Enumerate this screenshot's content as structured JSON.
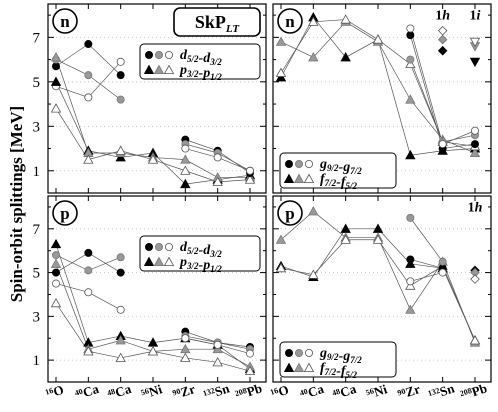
{
  "figure": {
    "ylabel": "Spin-orbit splittings [MeV]",
    "force_label_main": "SkP",
    "force_label_sub": "LT",
    "nuclei": [
      {
        "mass": "16",
        "sym": "O"
      },
      {
        "mass": "40",
        "sym": "Ca"
      },
      {
        "mass": "48",
        "sym": "Ca"
      },
      {
        "mass": "56",
        "sym": "Ni"
      },
      {
        "mass": "90",
        "sym": "Zr"
      },
      {
        "mass": "132",
        "sym": "Sn"
      },
      {
        "mass": "208",
        "sym": "Pb"
      }
    ],
    "yticks": [
      1,
      3,
      5,
      7
    ],
    "colors": {
      "filled": "#000000",
      "gray": "#999999",
      "open": "#ffffff",
      "line": "#555555"
    }
  },
  "chart_data": [
    {
      "type": "scatter",
      "panel": "top-left",
      "label": "n",
      "ylim": [
        0,
        8.5
      ],
      "legend_placement": "top-right",
      "legend": [
        {
          "main": "d",
          "sub1": "5/2",
          "sep": "-",
          "main2": "d",
          "sub2": "3/2",
          "marker": "circle"
        },
        {
          "main": "p",
          "sub1": "3/2",
          "sep": "-",
          "main2": "p",
          "sub2": "1/2",
          "marker": "triangle"
        }
      ],
      "series": [
        {
          "marker": "circle",
          "fill": "filled",
          "x": [
            0,
            1,
            2
          ],
          "values": [
            5.7,
            6.7,
            5.3
          ]
        },
        {
          "marker": "circle",
          "fill": "gray",
          "x": [
            0,
            1,
            2
          ],
          "values": [
            6.0,
            5.3,
            4.2
          ]
        },
        {
          "marker": "circle",
          "fill": "open",
          "x": [
            0,
            1,
            2
          ],
          "values": [
            4.8,
            4.3,
            5.9
          ]
        },
        {
          "marker": "triangle",
          "fill": "filled",
          "x": [
            0,
            1,
            2,
            3,
            4,
            5,
            6
          ],
          "values": [
            5.0,
            1.9,
            1.6,
            1.8,
            0.4,
            0.6,
            0.8
          ]
        },
        {
          "marker": "triangle",
          "fill": "gray",
          "x": [
            0,
            1,
            2,
            3,
            4,
            5,
            6
          ],
          "values": [
            6.1,
            1.8,
            1.8,
            1.6,
            1.5,
            0.7,
            0.7
          ]
        },
        {
          "marker": "triangle",
          "fill": "open",
          "x": [
            0,
            1,
            2,
            3,
            4,
            5,
            6
          ],
          "values": [
            3.8,
            1.5,
            1.9,
            1.5,
            1.0,
            0.5,
            0.6
          ]
        },
        {
          "marker": "circle",
          "fill": "filled",
          "x": [
            4,
            5,
            6
          ],
          "values": [
            2.4,
            1.9,
            0.9
          ]
        },
        {
          "marker": "circle",
          "fill": "gray",
          "x": [
            4,
            5,
            6
          ],
          "values": [
            2.2,
            1.8,
            1.0
          ]
        },
        {
          "marker": "circle",
          "fill": "open",
          "x": [
            4,
            5,
            6
          ],
          "values": [
            2.0,
            1.6,
            1.0
          ]
        }
      ]
    },
    {
      "type": "scatter",
      "panel": "top-right",
      "label": "n",
      "ylim": [
        0,
        8.5
      ],
      "legend_placement": "bottom-left",
      "legend": [
        {
          "main": "g",
          "sub1": "9/2",
          "sep": "-",
          "main2": "g",
          "sub2": "7/2",
          "marker": "circle"
        },
        {
          "main": "f",
          "sub1": "7/2",
          "sep": "-",
          "main2": "f",
          "sub2": "5/2",
          "marker": "triangle"
        }
      ],
      "annotations": [
        {
          "text": "1h",
          "x": 5
        },
        {
          "text": "1i",
          "x": 6
        }
      ],
      "series": [
        {
          "marker": "triangle",
          "fill": "filled",
          "x": [
            0,
            1,
            2,
            3,
            4,
            5,
            6
          ],
          "values": [
            5.2,
            7.9,
            6.1,
            6.9,
            1.7,
            1.9,
            2.0
          ]
        },
        {
          "marker": "triangle",
          "fill": "gray",
          "x": [
            0,
            1,
            2,
            3,
            4,
            5,
            6
          ],
          "values": [
            6.8,
            6.1,
            7.7,
            6.8,
            4.2,
            2.4,
            1.8
          ]
        },
        {
          "marker": "triangle",
          "fill": "open",
          "x": [
            0,
            1,
            2,
            3,
            4,
            5,
            6
          ],
          "values": [
            5.4,
            7.7,
            7.8,
            6.9,
            5.8,
            2.3,
            2.1
          ]
        },
        {
          "marker": "circle",
          "fill": "filled",
          "x": [
            4,
            5,
            6
          ],
          "values": [
            7.1,
            2.0,
            2.2
          ]
        },
        {
          "marker": "circle",
          "fill": "gray",
          "x": [
            4,
            5,
            6
          ],
          "values": [
            6.0,
            2.3,
            2.6
          ]
        },
        {
          "marker": "circle",
          "fill": "open",
          "x": [
            4,
            5,
            6
          ],
          "values": [
            7.4,
            2.2,
            2.8
          ]
        },
        {
          "marker": "diamond",
          "fill": "filled",
          "x": [
            5
          ],
          "values": [
            6.4
          ]
        },
        {
          "marker": "diamond",
          "fill": "gray",
          "x": [
            5
          ],
          "values": [
            6.9
          ]
        },
        {
          "marker": "diamond",
          "fill": "open",
          "x": [
            5
          ],
          "values": [
            7.3
          ]
        },
        {
          "marker": "triangle-down",
          "fill": "filled",
          "x": [
            6
          ],
          "values": [
            5.9
          ]
        },
        {
          "marker": "triangle-down",
          "fill": "gray",
          "x": [
            6
          ],
          "values": [
            6.6
          ]
        },
        {
          "marker": "triangle-down",
          "fill": "open",
          "x": [
            6
          ],
          "values": [
            6.8
          ]
        }
      ]
    },
    {
      "type": "scatter",
      "panel": "bottom-left",
      "label": "p",
      "ylim": [
        0,
        8.5
      ],
      "legend_placement": "top-right",
      "legend": [
        {
          "main": "d",
          "sub1": "5/2",
          "sep": "-",
          "main2": "d",
          "sub2": "3/2",
          "marker": "circle"
        },
        {
          "main": "p",
          "sub1": "3/2",
          "sep": "-",
          "main2": "p",
          "sub2": "1/2",
          "marker": "triangle"
        }
      ],
      "series": [
        {
          "marker": "circle",
          "fill": "filled",
          "x": [
            0,
            1,
            2
          ],
          "values": [
            5.0,
            5.9,
            5.0
          ]
        },
        {
          "marker": "circle",
          "fill": "gray",
          "x": [
            0,
            1,
            2
          ],
          "values": [
            5.8,
            5.1,
            5.7
          ]
        },
        {
          "marker": "circle",
          "fill": "open",
          "x": [
            0,
            1,
            2
          ],
          "values": [
            4.5,
            4.1,
            3.3
          ]
        },
        {
          "marker": "triangle",
          "fill": "filled",
          "x": [
            0,
            1,
            2,
            3,
            4,
            5,
            6
          ],
          "values": [
            6.3,
            1.8,
            2.1,
            1.8,
            2.0,
            1.7,
            0.6
          ]
        },
        {
          "marker": "triangle",
          "fill": "gray",
          "x": [
            0,
            1,
            2,
            3,
            4,
            5,
            6
          ],
          "values": [
            5.4,
            1.5,
            1.9,
            1.4,
            1.5,
            1.5,
            0.7
          ]
        },
        {
          "marker": "triangle",
          "fill": "open",
          "x": [
            0,
            1,
            2,
            3,
            4,
            5,
            6
          ],
          "values": [
            3.6,
            1.4,
            1.1,
            1.4,
            1.1,
            0.9,
            0.5
          ]
        },
        {
          "marker": "circle",
          "fill": "filled",
          "x": [
            4,
            5,
            6
          ],
          "values": [
            2.3,
            1.8,
            1.6
          ]
        },
        {
          "marker": "circle",
          "fill": "gray",
          "x": [
            4,
            5,
            6
          ],
          "values": [
            2.1,
            1.8,
            1.5
          ]
        },
        {
          "marker": "circle",
          "fill": "open",
          "x": [
            4,
            5,
            6
          ],
          "values": [
            2.0,
            1.7,
            1.3
          ]
        }
      ]
    },
    {
      "type": "scatter",
      "panel": "bottom-right",
      "label": "p",
      "ylim": [
        0,
        8.5
      ],
      "legend_placement": "bottom-left",
      "legend": [
        {
          "main": "g",
          "sub1": "9/2",
          "sep": "-",
          "main2": "g",
          "sub2": "7/2",
          "marker": "circle"
        },
        {
          "main": "f",
          "sub1": "7/2",
          "sep": "-",
          "main2": "f",
          "sub2": "5/2",
          "marker": "triangle"
        }
      ],
      "annotations": [
        {
          "text": "1h",
          "x": 6
        }
      ],
      "series": [
        {
          "marker": "triangle",
          "fill": "filled",
          "x": [
            0,
            1,
            2,
            3,
            4,
            5,
            6
          ],
          "values": [
            5.3,
            4.8,
            7.0,
            7.0,
            5.4,
            5.2,
            1.9
          ]
        },
        {
          "marker": "triangle",
          "fill": "gray",
          "x": [
            0,
            1,
            2,
            3,
            4,
            5,
            6
          ],
          "values": [
            6.5,
            7.8,
            6.6,
            6.6,
            3.3,
            5.5,
            1.8
          ]
        },
        {
          "marker": "triangle",
          "fill": "open",
          "x": [
            0,
            1,
            2,
            3,
            4,
            5,
            6
          ],
          "values": [
            5.2,
            4.9,
            6.5,
            6.5,
            4.4,
            5.3,
            1.9
          ]
        },
        {
          "marker": "circle",
          "fill": "filled",
          "x": [
            4,
            5
          ],
          "values": [
            5.6,
            5.2
          ]
        },
        {
          "marker": "circle",
          "fill": "gray",
          "x": [
            4,
            5
          ],
          "values": [
            7.5,
            5.5
          ]
        },
        {
          "marker": "circle",
          "fill": "open",
          "x": [
            4,
            5
          ],
          "values": [
            4.6,
            5.0
          ]
        },
        {
          "marker": "diamond",
          "fill": "filled",
          "x": [
            6
          ],
          "values": [
            5.1
          ]
        },
        {
          "marker": "diamond",
          "fill": "gray",
          "x": [
            6
          ],
          "values": [
            5.0
          ]
        },
        {
          "marker": "diamond",
          "fill": "open",
          "x": [
            6
          ],
          "values": [
            4.7
          ]
        }
      ]
    }
  ]
}
